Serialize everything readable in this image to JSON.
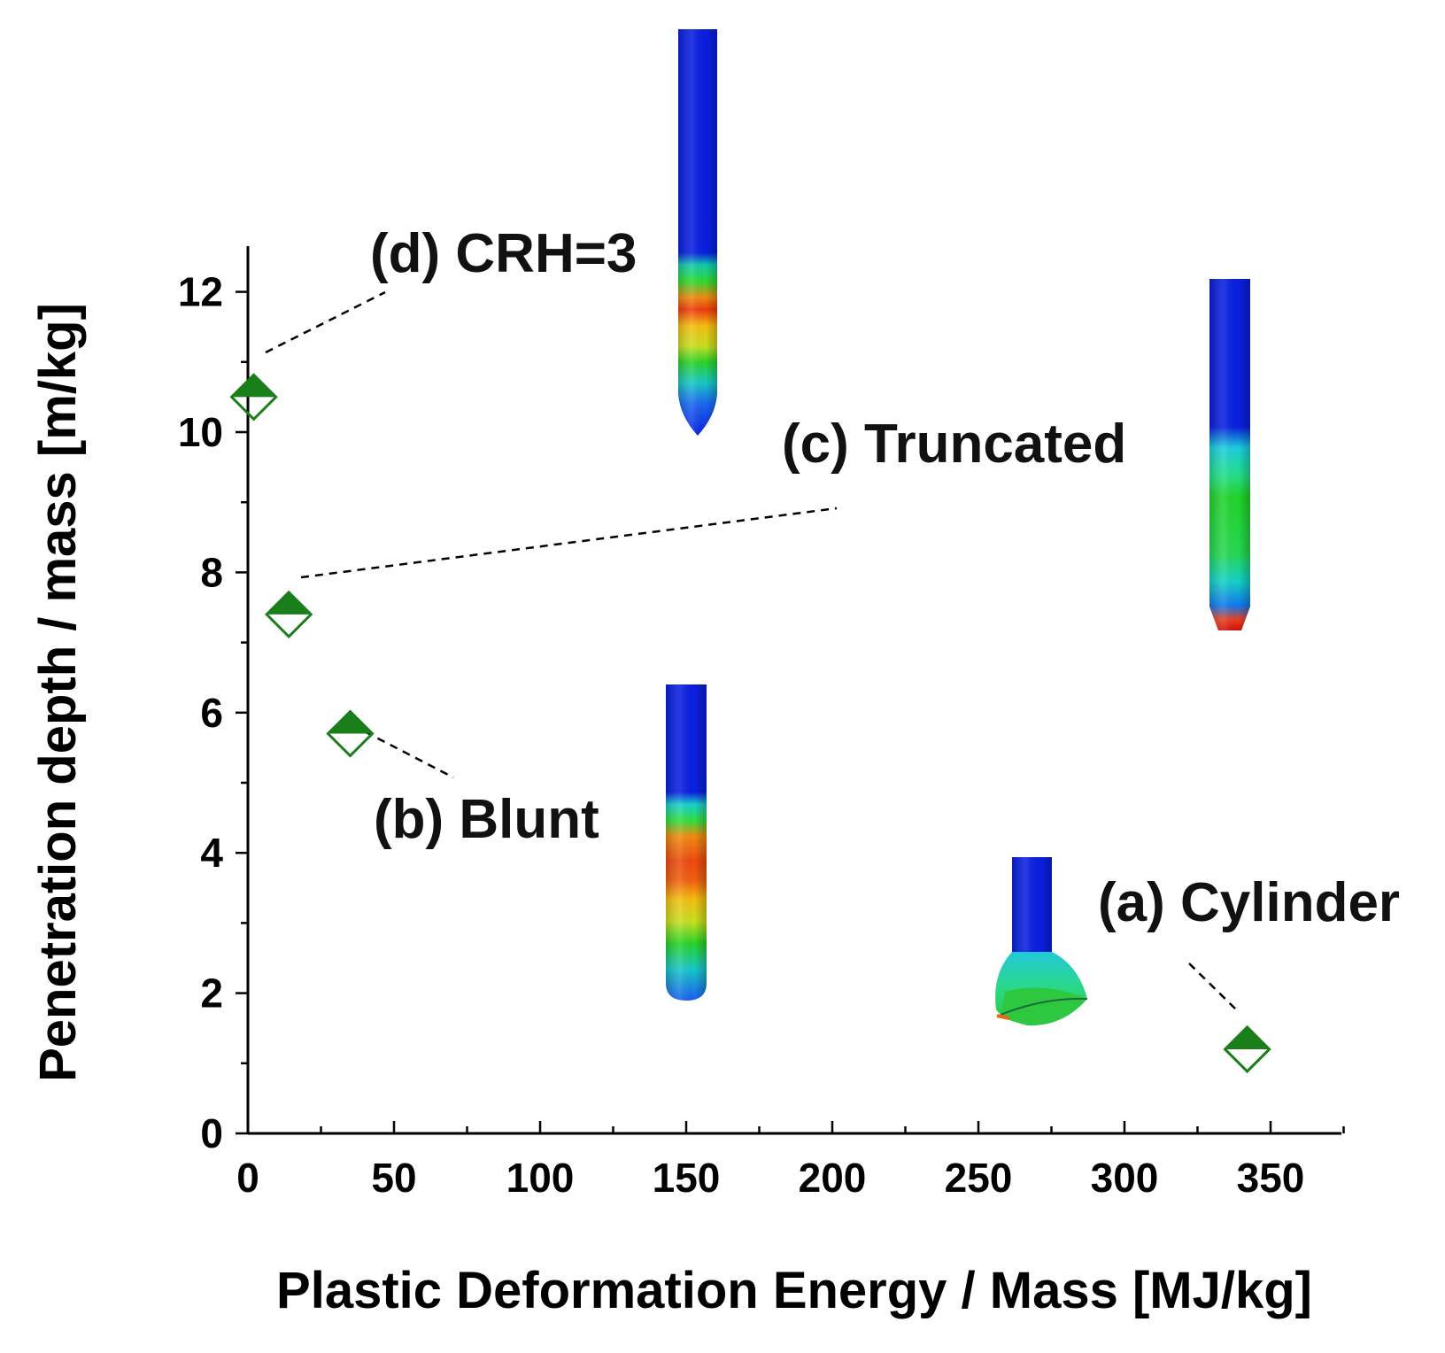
{
  "chart_data": {
    "type": "scatter",
    "title": "",
    "xlabel": "Plastic Deformation Energy / Mass [MJ/kg]",
    "ylabel": "Penetration depth / mass [m/kg]",
    "xlim": [
      0,
      375
    ],
    "ylim": [
      0,
      12
    ],
    "xticks": [
      0,
      50,
      100,
      150,
      200,
      250,
      300,
      350
    ],
    "yticks": [
      0,
      2,
      4,
      6,
      8,
      10,
      12
    ],
    "grid": false,
    "marker": "half-filled diamond",
    "marker_color": "#1a7f1a",
    "points": [
      {
        "label": "(a) Cylinder",
        "x": 342,
        "y": 1.2
      },
      {
        "label": "(b) Blunt",
        "x": 35,
        "y": 5.7
      },
      {
        "label": "(c) Truncated",
        "x": 14,
        "y": 7.4
      },
      {
        "label": "(d) CRH=3",
        "x": 2,
        "y": 10.5
      }
    ]
  },
  "insets": [
    {
      "name": "crh3-projectile",
      "nose": "ogive"
    },
    {
      "name": "truncated-projectile",
      "nose": "truncated"
    },
    {
      "name": "blunt-projectile",
      "nose": "blunt"
    },
    {
      "name": "cylinder-projectile",
      "nose": "mushroomed"
    }
  ]
}
